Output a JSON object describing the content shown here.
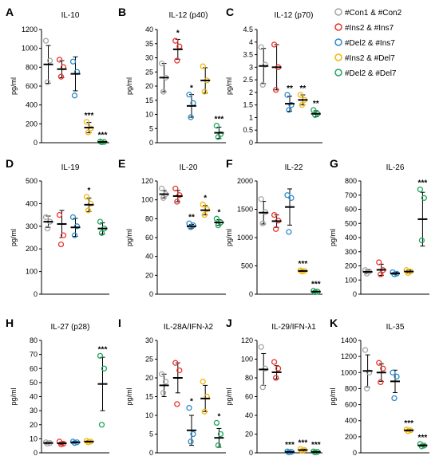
{
  "legend": [
    {
      "label": "#Con1 & #Con2",
      "color": "#a6a6a6"
    },
    {
      "label": "#Ins2 & #Ins7",
      "color": "#e8332a"
    },
    {
      "label": "#Del2 & #Ins7",
      "color": "#2e8ac8"
    },
    {
      "label": "#Ins2 & #Del7",
      "color": "#f2b705"
    },
    {
      "label": "#Del2 & #Del7",
      "color": "#1fa55b"
    }
  ],
  "chart_data": [
    {
      "letter": "A",
      "type": "scatter",
      "title": "IL-10",
      "ylabel": "pg/ml",
      "ylim": [
        0,
        1200
      ],
      "yticks": [
        0,
        200,
        400,
        600,
        800,
        1000,
        1200
      ],
      "groups": [
        {
          "points": [
            1080,
            870,
            640
          ],
          "mean": 830,
          "sd": 200,
          "sig": ""
        },
        {
          "points": [
            880,
            800,
            700
          ],
          "mean": 780,
          "sd": 90,
          "sig": ""
        },
        {
          "points": [
            860,
            750,
            500
          ],
          "mean": 730,
          "sd": 180,
          "sig": ""
        },
        {
          "points": [
            220,
            150,
            110
          ],
          "mean": 160,
          "sd": 55,
          "sig": "***"
        },
        {
          "points": [
            12,
            8,
            5
          ],
          "mean": 8,
          "sd": 3,
          "sig": "***"
        }
      ]
    },
    {
      "letter": "B",
      "type": "scatter",
      "title": "IL-12 (p40)",
      "ylabel": "pg/ml",
      "ylim": [
        0,
        40
      ],
      "yticks": [
        0,
        5,
        10,
        15,
        20,
        25,
        30,
        35,
        40
      ],
      "groups": [
        {
          "points": [
            28,
            23,
            18
          ],
          "mean": 23,
          "sd": 5,
          "sig": ""
        },
        {
          "points": [
            36,
            34,
            29
          ],
          "mean": 33,
          "sd": 3.5,
          "sig": "*"
        },
        {
          "points": [
            17,
            14,
            9
          ],
          "mean": 13,
          "sd": 4,
          "sig": "*"
        },
        {
          "points": [
            27,
            22,
            18
          ],
          "mean": 22,
          "sd": 4.5,
          "sig": ""
        },
        {
          "points": [
            6,
            3,
            2
          ],
          "mean": 3.5,
          "sd": 2,
          "sig": "***"
        }
      ]
    },
    {
      "letter": "C",
      "type": "scatter",
      "title": "IL-12 (p70)",
      "ylabel": "pg/ml",
      "ylim": [
        0,
        4.5
      ],
      "yticks": [
        0,
        0.5,
        1,
        1.5,
        2,
        2.5,
        3,
        3.5,
        4,
        4.5
      ],
      "groups": [
        {
          "points": [
            3.8,
            3.1,
            2.3
          ],
          "mean": 3.05,
          "sd": 0.7,
          "sig": ""
        },
        {
          "points": [
            3.9,
            3.0,
            2.1
          ],
          "mean": 3.0,
          "sd": 0.9,
          "sig": ""
        },
        {
          "points": [
            1.9,
            1.5,
            1.3
          ],
          "mean": 1.55,
          "sd": 0.3,
          "sig": "**"
        },
        {
          "points": [
            1.9,
            1.7,
            1.5
          ],
          "mean": 1.7,
          "sd": 0.2,
          "sig": "**"
        },
        {
          "points": [
            1.3,
            1.15,
            1.1
          ],
          "mean": 1.15,
          "sd": 0.12,
          "sig": "**"
        }
      ]
    },
    {
      "letter": "D",
      "type": "scatter",
      "title": "IL-19",
      "ylabel": "pg/ml",
      "ylim": [
        0,
        500
      ],
      "yticks": [
        0,
        100,
        200,
        300,
        400,
        500
      ],
      "groups": [
        {
          "points": [
            340,
            320,
            290
          ],
          "mean": 320,
          "sd": 25,
          "sig": ""
        },
        {
          "points": [
            350,
            260,
            220
          ],
          "mean": 310,
          "sd": 60,
          "sig": ""
        },
        {
          "points": [
            340,
            300,
            260
          ],
          "mean": 295,
          "sd": 40,
          "sig": ""
        },
        {
          "points": [
            430,
            400,
            370
          ],
          "mean": 395,
          "sd": 30,
          "sig": "*"
        },
        {
          "points": [
            320,
            290,
            270
          ],
          "mean": 290,
          "sd": 25,
          "sig": ""
        }
      ]
    },
    {
      "letter": "E",
      "type": "scatter",
      "title": "IL-20",
      "ylabel": "pg/ml",
      "ylim": [
        0,
        120
      ],
      "yticks": [
        0,
        20,
        40,
        60,
        80,
        100,
        120
      ],
      "groups": [
        {
          "points": [
            112,
            106,
            102
          ],
          "mean": 106,
          "sd": 4,
          "sig": ""
        },
        {
          "points": [
            112,
            105,
            98
          ],
          "mean": 104,
          "sd": 6,
          "sig": ""
        },
        {
          "points": [
            75,
            73,
            71
          ],
          "mean": 72,
          "sd": 2,
          "sig": "**"
        },
        {
          "points": [
            95,
            90,
            84
          ],
          "mean": 89,
          "sd": 5,
          "sig": "*"
        },
        {
          "points": [
            80,
            76,
            73
          ],
          "mean": 76,
          "sd": 3,
          "sig": "*"
        }
      ]
    },
    {
      "letter": "F",
      "type": "scatter",
      "title": "IL-22",
      "ylabel": "pg/ml",
      "ylim": [
        0,
        2000
      ],
      "yticks": [
        0,
        500,
        1000,
        1500,
        2000
      ],
      "groups": [
        {
          "points": [
            1680,
            1450,
            1250
          ],
          "mean": 1440,
          "sd": 200,
          "sig": ""
        },
        {
          "points": [
            1400,
            1300,
            1150
          ],
          "mean": 1290,
          "sd": 110,
          "sig": ""
        },
        {
          "points": [
            1750,
            1700,
            1100
          ],
          "mean": 1540,
          "sd": 320,
          "sig": ""
        },
        {
          "points": [
            420,
            410,
            400
          ],
          "mean": 410,
          "sd": 10,
          "sig": "***"
        },
        {
          "points": [
            60,
            45,
            35
          ],
          "mean": 45,
          "sd": 10,
          "sig": "***"
        }
      ]
    },
    {
      "letter": "G",
      "type": "scatter",
      "title": "IL-26",
      "ylabel": "pg/ml",
      "ylim": [
        0,
        800
      ],
      "yticks": [
        0,
        100,
        200,
        300,
        400,
        500,
        600,
        700,
        800
      ],
      "groups": [
        {
          "points": [
            170,
            160,
            145
          ],
          "mean": 158,
          "sd": 12,
          "sig": ""
        },
        {
          "points": [
            225,
            170,
            140
          ],
          "mean": 172,
          "sd": 40,
          "sig": ""
        },
        {
          "points": [
            155,
            145,
            140
          ],
          "mean": 147,
          "sd": 8,
          "sig": ""
        },
        {
          "points": [
            170,
            160,
            150
          ],
          "mean": 160,
          "sd": 10,
          "sig": ""
        },
        {
          "points": [
            740,
            680,
            380
          ],
          "mean": 530,
          "sd": 190,
          "sig": "***"
        }
      ]
    },
    {
      "letter": "H",
      "type": "scatter",
      "title": "IL-27 (p28)",
      "ylabel": "pg/ml",
      "ylim": [
        0,
        80
      ],
      "yticks": [
        0,
        10,
        20,
        30,
        40,
        50,
        60,
        70,
        80
      ],
      "groups": [
        {
          "points": [
            7.5,
            7,
            6.5
          ],
          "mean": 7,
          "sd": 0.5,
          "sig": ""
        },
        {
          "points": [
            8,
            6.5,
            6
          ],
          "mean": 6.8,
          "sd": 1,
          "sig": ""
        },
        {
          "points": [
            8,
            7.5,
            7
          ],
          "mean": 7.5,
          "sd": 0.5,
          "sig": ""
        },
        {
          "points": [
            8.5,
            8,
            7.5
          ],
          "mean": 8,
          "sd": 0.5,
          "sig": ""
        },
        {
          "points": [
            69,
            60,
            20
          ],
          "mean": 49,
          "sd": 19,
          "sig": "***"
        }
      ]
    },
    {
      "letter": "I",
      "type": "scatter",
      "title": "IL-28A/IFN-λ2",
      "ylabel": "pg/ml",
      "ylim": [
        0,
        30
      ],
      "yticks": [
        0,
        5,
        10,
        15,
        20,
        25,
        30
      ],
      "groups": [
        {
          "points": [
            21,
            19,
            16
          ],
          "mean": 18,
          "sd": 3,
          "sig": ""
        },
        {
          "points": [
            24,
            22,
            13
          ],
          "mean": 20,
          "sd": 4,
          "sig": ""
        },
        {
          "points": [
            12,
            5,
            3
          ],
          "mean": 6,
          "sd": 4,
          "sig": "*"
        },
        {
          "points": [
            19,
            15,
            11
          ],
          "mean": 14.5,
          "sd": 3.5,
          "sig": ""
        },
        {
          "points": [
            8,
            5,
            2
          ],
          "mean": 4,
          "sd": 2.5,
          "sig": "*"
        }
      ]
    },
    {
      "letter": "J",
      "type": "scatter",
      "title": "IL-29/IFN-λ1",
      "ylabel": "pg/ml",
      "ylim": [
        0,
        120
      ],
      "yticks": [
        0,
        20,
        40,
        60,
        80,
        100,
        120
      ],
      "groups": [
        {
          "points": [
            113,
            90,
            70
          ],
          "mean": 89,
          "sd": 17,
          "sig": ""
        },
        {
          "points": [
            97,
            90,
            80
          ],
          "mean": 86,
          "sd": 7,
          "sig": ""
        },
        {
          "points": [
            1.5,
            1,
            0.5
          ],
          "mean": 1,
          "sd": 0.5,
          "sig": "***"
        },
        {
          "points": [
            4,
            3,
            2
          ],
          "mean": 3,
          "sd": 1,
          "sig": "***"
        },
        {
          "points": [
            1.5,
            1,
            0.5
          ],
          "mean": 1,
          "sd": 0.5,
          "sig": "***"
        }
      ]
    },
    {
      "letter": "K",
      "type": "scatter",
      "title": "IL-35",
      "ylabel": "pg/ml",
      "ylim": [
        0,
        1400
      ],
      "yticks": [
        0,
        200,
        400,
        600,
        800,
        1000,
        1200,
        1400
      ],
      "groups": [
        {
          "points": [
            1280,
            1000,
            800
          ],
          "mean": 1020,
          "sd": 200,
          "sig": ""
        },
        {
          "points": [
            1120,
            1050,
            880
          ],
          "mean": 1000,
          "sd": 110,
          "sig": ""
        },
        {
          "points": [
            1000,
            950,
            680
          ],
          "mean": 890,
          "sd": 140,
          "sig": ""
        },
        {
          "points": [
            290,
            280,
            270
          ],
          "mean": 280,
          "sd": 10,
          "sig": "***"
        },
        {
          "points": [
            110,
            90,
            80
          ],
          "mean": 92,
          "sd": 12,
          "sig": "***"
        }
      ]
    }
  ]
}
